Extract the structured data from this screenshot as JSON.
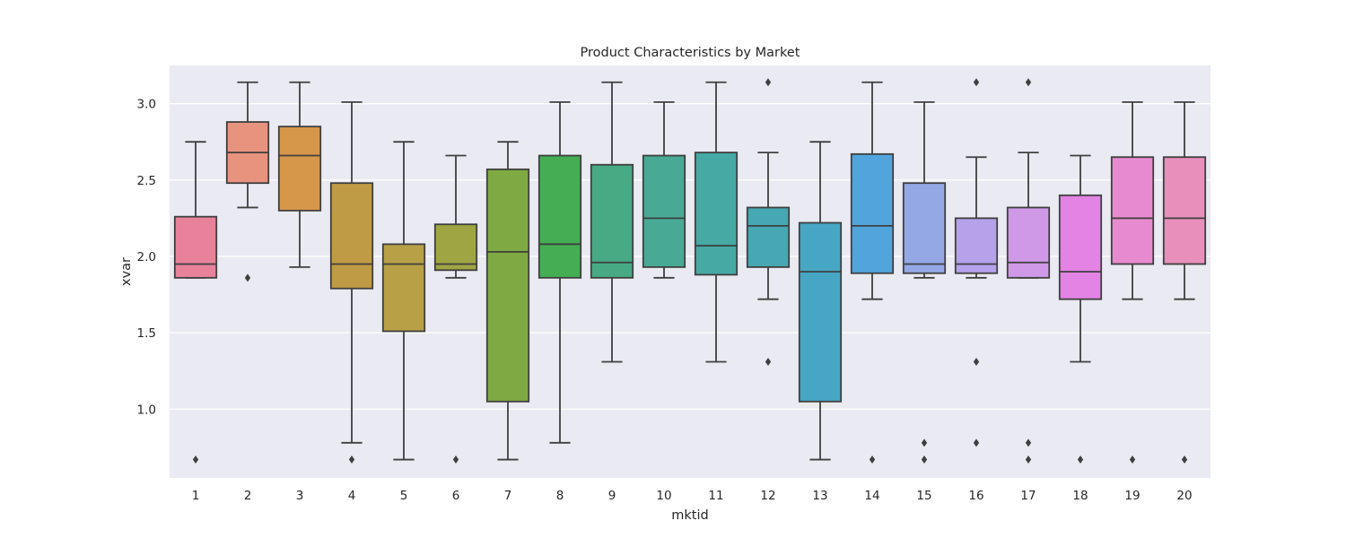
{
  "chart_data": {
    "type": "boxplot",
    "title": "Product Characteristics by Market",
    "xlabel": "mktid",
    "ylabel": "xvar",
    "ylim": [
      0.55,
      3.25
    ],
    "yticks": [
      "1.0",
      "1.5",
      "2.0",
      "2.5",
      "3.0"
    ],
    "grid": true,
    "background": "#eaeaf2",
    "categories": [
      "1",
      "2",
      "3",
      "4",
      "5",
      "6",
      "7",
      "8",
      "9",
      "10",
      "11",
      "12",
      "13",
      "14",
      "15",
      "16",
      "17",
      "18",
      "19",
      "20"
    ],
    "boxes": [
      {
        "x": "1",
        "color": "#e8829a",
        "whisker_low": 1.86,
        "q1": 1.86,
        "median": 1.95,
        "q3": 2.26,
        "whisker_high": 2.75,
        "outliers": [
          0.67
        ]
      },
      {
        "x": "2",
        "color": "#e8937e",
        "whisker_low": 2.32,
        "q1": 2.48,
        "median": 2.68,
        "q3": 2.88,
        "whisker_high": 3.14,
        "outliers": [
          1.86
        ]
      },
      {
        "x": "3",
        "color": "#d7974a",
        "whisker_low": 1.93,
        "q1": 2.3,
        "median": 2.66,
        "q3": 2.85,
        "whisker_high": 3.14,
        "outliers": []
      },
      {
        "x": "4",
        "color": "#c09b45",
        "whisker_low": 0.78,
        "q1": 1.79,
        "median": 1.95,
        "q3": 2.48,
        "whisker_high": 3.01,
        "outliers": [
          0.67
        ]
      },
      {
        "x": "5",
        "color": "#b8a046",
        "whisker_low": 0.67,
        "q1": 1.51,
        "median": 1.95,
        "q3": 2.08,
        "whisker_high": 2.75,
        "outliers": []
      },
      {
        "x": "6",
        "color": "#a0a543",
        "whisker_low": 1.86,
        "q1": 1.91,
        "median": 1.95,
        "q3": 2.21,
        "whisker_high": 2.66,
        "outliers": [
          0.67
        ]
      },
      {
        "x": "7",
        "color": "#7faa43",
        "whisker_low": 0.67,
        "q1": 1.05,
        "median": 2.03,
        "q3": 2.57,
        "whisker_high": 2.75,
        "outliers": []
      },
      {
        "x": "8",
        "color": "#45ae54",
        "whisker_low": 0.78,
        "q1": 1.86,
        "median": 2.08,
        "q3": 2.66,
        "whisker_high": 3.01,
        "outliers": []
      },
      {
        "x": "9",
        "color": "#47aa84",
        "whisker_low": 1.31,
        "q1": 1.86,
        "median": 1.96,
        "q3": 2.6,
        "whisker_high": 3.14,
        "outliers": []
      },
      {
        "x": "10",
        "color": "#48aa95",
        "whisker_low": 1.86,
        "q1": 1.93,
        "median": 2.25,
        "q3": 2.66,
        "whisker_high": 3.01,
        "outliers": []
      },
      {
        "x": "11",
        "color": "#46a9a4",
        "whisker_low": 1.31,
        "q1": 1.88,
        "median": 2.07,
        "q3": 2.68,
        "whisker_high": 3.14,
        "outliers": []
      },
      {
        "x": "12",
        "color": "#45a8b3",
        "whisker_low": 1.72,
        "q1": 1.93,
        "median": 2.2,
        "q3": 2.32,
        "whisker_high": 2.68,
        "outliers": [
          1.31,
          3.14
        ]
      },
      {
        "x": "13",
        "color": "#47a6c4",
        "whisker_low": 0.67,
        "q1": 1.05,
        "median": 1.9,
        "q3": 2.22,
        "whisker_high": 2.75,
        "outliers": []
      },
      {
        "x": "14",
        "color": "#51a5dc",
        "whisker_low": 1.72,
        "q1": 1.89,
        "median": 2.2,
        "q3": 2.67,
        "whisker_high": 3.14,
        "outliers": [
          0.67
        ]
      },
      {
        "x": "15",
        "color": "#93a8e5",
        "whisker_low": 1.86,
        "q1": 1.89,
        "median": 1.95,
        "q3": 2.48,
        "whisker_high": 3.01,
        "outliers": [
          0.78,
          0.67
        ]
      },
      {
        "x": "16",
        "color": "#b5a2eb",
        "whisker_low": 1.86,
        "q1": 1.89,
        "median": 1.95,
        "q3": 2.25,
        "whisker_high": 2.65,
        "outliers": [
          1.31,
          0.78,
          3.14
        ]
      },
      {
        "x": "17",
        "color": "#cf99e8",
        "whisker_low": 1.86,
        "q1": 1.86,
        "median": 1.96,
        "q3": 2.32,
        "whisker_high": 2.68,
        "outliers": [
          0.78,
          0.67,
          3.14
        ]
      },
      {
        "x": "18",
        "color": "#e383e3",
        "whisker_low": 1.31,
        "q1": 1.72,
        "median": 1.9,
        "q3": 2.4,
        "whisker_high": 2.66,
        "outliers": [
          0.67
        ]
      },
      {
        "x": "19",
        "color": "#e88acf",
        "whisker_low": 1.72,
        "q1": 1.95,
        "median": 2.25,
        "q3": 2.65,
        "whisker_high": 3.01,
        "outliers": [
          0.67
        ]
      },
      {
        "x": "20",
        "color": "#e88fbb",
        "whisker_low": 1.72,
        "q1": 1.95,
        "median": 2.25,
        "q3": 2.65,
        "whisker_high": 3.01,
        "outliers": [
          0.67
        ]
      }
    ]
  }
}
